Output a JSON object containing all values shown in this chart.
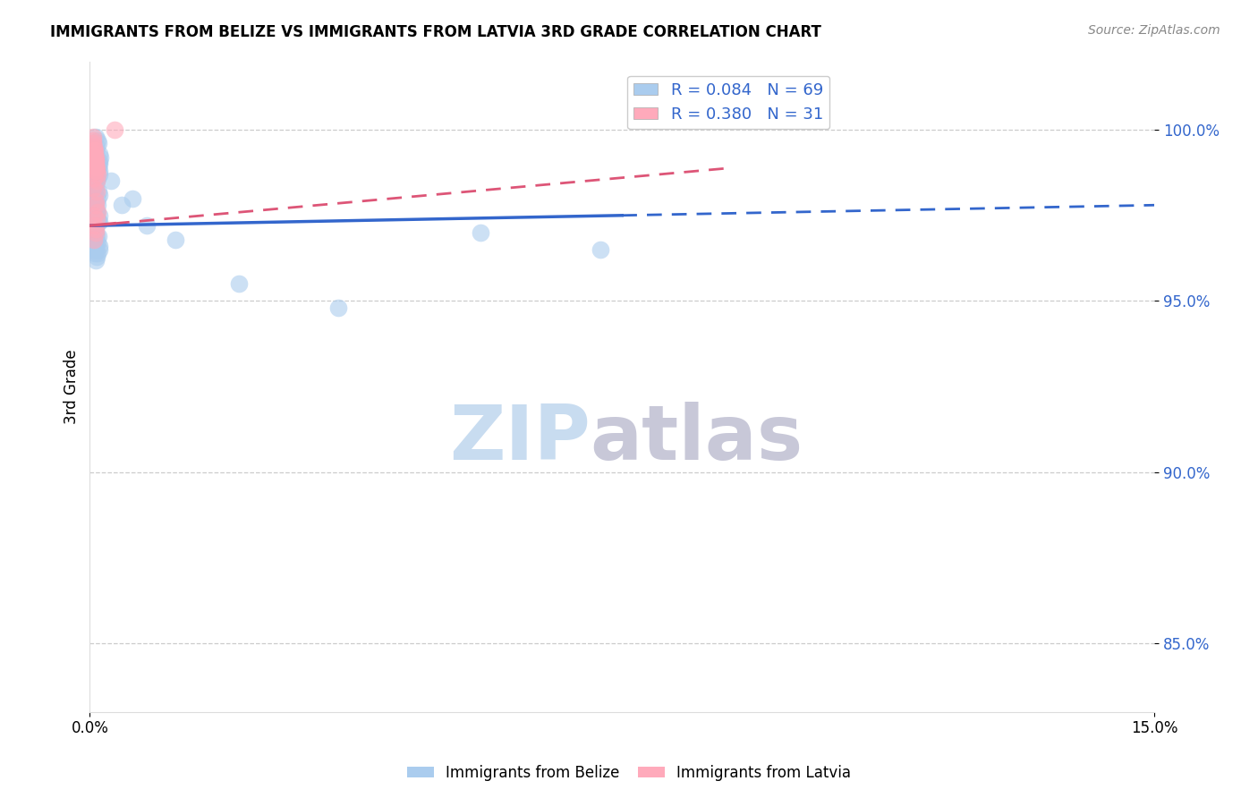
{
  "title": "IMMIGRANTS FROM BELIZE VS IMMIGRANTS FROM LATVIA 3RD GRADE CORRELATION CHART",
  "source_text": "Source: ZipAtlas.com",
  "xlabel": "",
  "ylabel": "3rd Grade",
  "xlim": [
    0.0,
    15.0
  ],
  "ylim": [
    83.0,
    102.0
  ],
  "x_ticks": [
    0.0,
    15.0
  ],
  "x_tick_labels": [
    "0.0%",
    "15.0%"
  ],
  "y_ticks": [
    85.0,
    90.0,
    95.0,
    100.0
  ],
  "y_tick_labels": [
    "85.0%",
    "90.0%",
    "95.0%",
    "100.0%"
  ],
  "belize_color": "#aaccee",
  "latvia_color": "#ffaabb",
  "belize_R": 0.084,
  "belize_N": 69,
  "latvia_R": 0.38,
  "latvia_N": 31,
  "belize_scatter_x": [
    0.05,
    0.08,
    0.1,
    0.12,
    0.06,
    0.09,
    0.11,
    0.07,
    0.13,
    0.1,
    0.08,
    0.12,
    0.15,
    0.09,
    0.11,
    0.14,
    0.07,
    0.1,
    0.13,
    0.06,
    0.08,
    0.12,
    0.09,
    0.11,
    0.07,
    0.13,
    0.1,
    0.06,
    0.14,
    0.08,
    0.11,
    0.09,
    0.12,
    0.1,
    0.07,
    0.13,
    0.08,
    0.11,
    0.06,
    0.09,
    0.12,
    0.1,
    0.08,
    0.14,
    0.07,
    0.11,
    0.09,
    0.13,
    0.1,
    0.06,
    0.08,
    0.12,
    0.09,
    0.11,
    0.07,
    0.13,
    0.1,
    0.14,
    0.08,
    0.11,
    0.3,
    0.45,
    0.6,
    0.8,
    1.2,
    2.1,
    3.5,
    5.5,
    7.2
  ],
  "belize_scatter_y": [
    99.5,
    99.8,
    99.2,
    99.6,
    99.0,
    99.4,
    99.7,
    99.1,
    99.3,
    99.5,
    98.8,
    99.0,
    99.2,
    98.6,
    98.9,
    99.1,
    98.5,
    98.8,
    99.0,
    98.4,
    98.7,
    98.9,
    98.3,
    98.6,
    98.2,
    98.8,
    98.5,
    98.1,
    98.7,
    98.4,
    98.0,
    97.8,
    98.2,
    97.6,
    97.9,
    98.1,
    97.5,
    97.8,
    97.4,
    97.7,
    97.3,
    97.6,
    97.2,
    97.5,
    97.1,
    97.4,
    97.0,
    97.3,
    96.9,
    96.8,
    96.6,
    96.9,
    96.5,
    96.7,
    96.4,
    96.6,
    96.3,
    96.5,
    96.2,
    96.4,
    98.5,
    97.8,
    98.0,
    97.2,
    96.8,
    95.5,
    94.8,
    97.0,
    96.5
  ],
  "latvia_scatter_x": [
    0.04,
    0.06,
    0.08,
    0.1,
    0.05,
    0.07,
    0.09,
    0.11,
    0.06,
    0.08,
    0.1,
    0.05,
    0.07,
    0.09,
    0.06,
    0.08,
    0.1,
    0.07,
    0.09,
    0.05,
    0.08,
    0.1,
    0.06,
    0.09,
    0.07,
    0.11,
    0.08,
    0.1,
    0.06,
    0.09,
    0.35
  ],
  "latvia_scatter_y": [
    99.8,
    99.5,
    99.2,
    98.9,
    99.6,
    99.3,
    99.0,
    98.7,
    99.4,
    99.1,
    98.8,
    99.7,
    99.4,
    99.1,
    98.6,
    98.9,
    98.5,
    99.2,
    98.8,
    98.3,
    97.8,
    98.2,
    97.5,
    97.9,
    97.2,
    97.6,
    97.0,
    97.4,
    96.8,
    97.1,
    100.0
  ],
  "watermark_zip": "ZIP",
  "watermark_atlas": "atlas",
  "watermark_color_zip": "#c8dcf0",
  "watermark_color_atlas": "#c8c8d8",
  "belize_line_color": "#3366cc",
  "latvia_line_color": "#dd5577",
  "legend_text_color": "#3366cc",
  "grid_color": "#cccccc",
  "background_color": "#ffffff",
  "belize_line_y0": 97.2,
  "belize_line_y15": 97.8,
  "latvia_line_y0": 97.2,
  "latvia_line_y15": 100.0,
  "belize_solid_end": 7.5,
  "latvia_solid_end": 0.35,
  "latvia_dash_end": 9.0
}
